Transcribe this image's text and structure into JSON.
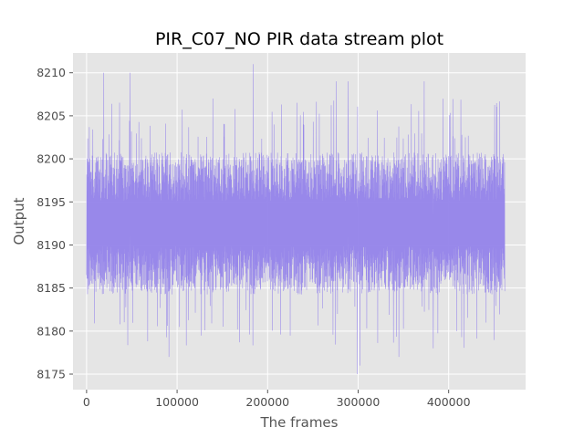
{
  "chart_data": {
    "type": "line",
    "title": "PIR_C07_NO PIR data stream plot",
    "xlabel": "The frames",
    "ylabel": "Output",
    "xlim": [
      -15000,
      485000
    ],
    "ylim": [
      8173.2,
      8212.3
    ],
    "xticks": [
      0,
      100000,
      200000,
      300000,
      400000
    ],
    "xtick_labels": [
      "0",
      "100000",
      "200000",
      "300000",
      "400000"
    ],
    "yticks": [
      8175,
      8180,
      8185,
      8190,
      8195,
      8200,
      8205,
      8210
    ],
    "ytick_labels": [
      "8175",
      "8180",
      "8185",
      "8190",
      "8195",
      "8200",
      "8205",
      "8210"
    ],
    "grid": true,
    "series": [
      {
        "color": "#9483ea",
        "x_start": 0,
        "x_end": 462000,
        "baseline": 8192.5,
        "typical_range": [
          8185,
          8200
        ],
        "max": 8211,
        "min": 8175,
        "peaks": [
          {
            "x": 19000,
            "y": 8210
          },
          {
            "x": 48000,
            "y": 8210
          },
          {
            "x": 184000,
            "y": 8211
          },
          {
            "x": 276000,
            "y": 8209
          },
          {
            "x": 289000,
            "y": 8209
          },
          {
            "x": 373000,
            "y": 8209
          }
        ],
        "troughs": [
          {
            "x": 91000,
            "y": 8177
          },
          {
            "x": 299000,
            "y": 8175
          },
          {
            "x": 302000,
            "y": 8176
          },
          {
            "x": 345000,
            "y": 8177
          },
          {
            "x": 383000,
            "y": 8178
          }
        ]
      }
    ]
  },
  "colors": {
    "plot_background": "#e5e5e5",
    "grid": "#ffffff",
    "line": "#9483ea"
  }
}
